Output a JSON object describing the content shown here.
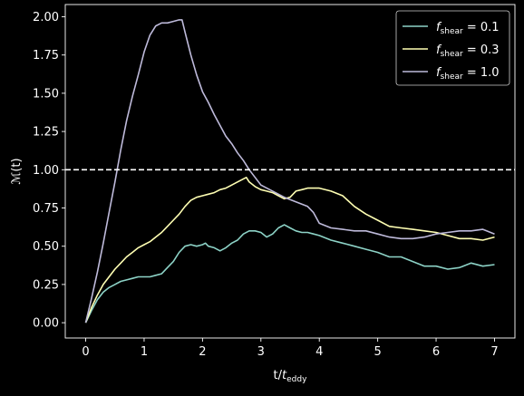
{
  "chart_data": {
    "type": "line",
    "xlabel": {
      "main": "t/",
      "var": "t",
      "sub": "eddy"
    },
    "ylabel": {
      "var": "ℳ",
      "arg": "(t)"
    },
    "xlim": [
      -0.35,
      7.35
    ],
    "ylim": [
      -0.1,
      2.08
    ],
    "xticks": [
      0,
      1,
      2,
      3,
      4,
      5,
      6,
      7
    ],
    "yticks": [
      0.0,
      0.25,
      0.5,
      0.75,
      1.0,
      1.25,
      1.5,
      1.75,
      2.0
    ],
    "grid": false,
    "legend_position": "top-right",
    "reference_line": {
      "y": 1.0,
      "style": "dashed",
      "color": "#ffffff"
    },
    "series": [
      {
        "name": "f_shear = 0.1",
        "legend": {
          "var": "f",
          "sub": "shear",
          "rest": " = 0.1"
        },
        "color": "#8dd3c7",
        "x": [
          0.0,
          0.1,
          0.2,
          0.3,
          0.4,
          0.5,
          0.6,
          0.7,
          0.8,
          0.9,
          1.0,
          1.1,
          1.2,
          1.3,
          1.4,
          1.5,
          1.6,
          1.7,
          1.8,
          1.9,
          2.0,
          2.05,
          2.1,
          2.2,
          2.3,
          2.4,
          2.5,
          2.6,
          2.7,
          2.8,
          2.9,
          3.0,
          3.1,
          3.2,
          3.3,
          3.4,
          3.5,
          3.6,
          3.7,
          3.8,
          3.9,
          4.0,
          4.2,
          4.4,
          4.6,
          4.8,
          5.0,
          5.2,
          5.4,
          5.6,
          5.8,
          6.0,
          6.2,
          6.4,
          6.6,
          6.8,
          7.0
        ],
        "y": [
          0.0,
          0.08,
          0.15,
          0.2,
          0.23,
          0.25,
          0.27,
          0.28,
          0.29,
          0.3,
          0.3,
          0.3,
          0.31,
          0.32,
          0.36,
          0.4,
          0.46,
          0.5,
          0.51,
          0.5,
          0.51,
          0.52,
          0.5,
          0.49,
          0.47,
          0.49,
          0.52,
          0.54,
          0.58,
          0.6,
          0.6,
          0.59,
          0.56,
          0.58,
          0.62,
          0.64,
          0.62,
          0.6,
          0.59,
          0.59,
          0.58,
          0.57,
          0.54,
          0.52,
          0.5,
          0.48,
          0.46,
          0.43,
          0.43,
          0.4,
          0.37,
          0.37,
          0.35,
          0.36,
          0.39,
          0.37,
          0.38
        ]
      },
      {
        "name": "f_shear = 0.3",
        "legend": {
          "var": "f",
          "sub": "shear",
          "rest": " = 0.3"
        },
        "color": "#ffffb3",
        "x": [
          0.0,
          0.1,
          0.2,
          0.3,
          0.4,
          0.5,
          0.6,
          0.7,
          0.8,
          0.9,
          1.0,
          1.1,
          1.2,
          1.3,
          1.4,
          1.5,
          1.6,
          1.7,
          1.8,
          1.9,
          2.0,
          2.1,
          2.2,
          2.3,
          2.4,
          2.5,
          2.6,
          2.7,
          2.75,
          2.8,
          2.9,
          3.0,
          3.1,
          3.2,
          3.3,
          3.4,
          3.5,
          3.6,
          3.7,
          3.8,
          3.9,
          4.0,
          4.2,
          4.4,
          4.6,
          4.8,
          5.0,
          5.2,
          5.4,
          5.6,
          5.8,
          6.0,
          6.2,
          6.4,
          6.6,
          6.8,
          7.0
        ],
        "y": [
          0.0,
          0.1,
          0.18,
          0.25,
          0.3,
          0.35,
          0.39,
          0.43,
          0.46,
          0.49,
          0.51,
          0.53,
          0.56,
          0.59,
          0.63,
          0.67,
          0.71,
          0.76,
          0.8,
          0.82,
          0.83,
          0.84,
          0.85,
          0.87,
          0.88,
          0.9,
          0.92,
          0.94,
          0.95,
          0.92,
          0.89,
          0.87,
          0.86,
          0.85,
          0.83,
          0.81,
          0.82,
          0.86,
          0.87,
          0.88,
          0.88,
          0.88,
          0.86,
          0.83,
          0.76,
          0.71,
          0.67,
          0.63,
          0.62,
          0.61,
          0.6,
          0.59,
          0.57,
          0.55,
          0.55,
          0.54,
          0.56
        ]
      },
      {
        "name": "f_shear = 1.0",
        "legend": {
          "var": "f",
          "sub": "shear",
          "rest": " = 1.0"
        },
        "color": "#bebada",
        "x": [
          0.0,
          0.1,
          0.2,
          0.3,
          0.4,
          0.5,
          0.6,
          0.7,
          0.8,
          0.9,
          1.0,
          1.1,
          1.2,
          1.3,
          1.4,
          1.5,
          1.6,
          1.65,
          1.7,
          1.8,
          1.9,
          2.0,
          2.1,
          2.2,
          2.3,
          2.4,
          2.5,
          2.6,
          2.7,
          2.8,
          2.9,
          3.0,
          3.2,
          3.4,
          3.6,
          3.8,
          3.9,
          4.0,
          4.2,
          4.4,
          4.6,
          4.8,
          5.0,
          5.2,
          5.4,
          5.6,
          5.8,
          6.0,
          6.2,
          6.4,
          6.6,
          6.8,
          7.0
        ],
        "y": [
          0.0,
          0.16,
          0.33,
          0.52,
          0.72,
          0.92,
          1.13,
          1.32,
          1.48,
          1.62,
          1.77,
          1.88,
          1.94,
          1.96,
          1.96,
          1.97,
          1.98,
          1.98,
          1.9,
          1.75,
          1.62,
          1.51,
          1.44,
          1.36,
          1.29,
          1.22,
          1.17,
          1.11,
          1.06,
          1.0,
          0.95,
          0.9,
          0.86,
          0.82,
          0.79,
          0.76,
          0.72,
          0.65,
          0.62,
          0.61,
          0.6,
          0.6,
          0.58,
          0.56,
          0.55,
          0.55,
          0.56,
          0.58,
          0.59,
          0.6,
          0.6,
          0.61,
          0.58
        ]
      }
    ]
  }
}
